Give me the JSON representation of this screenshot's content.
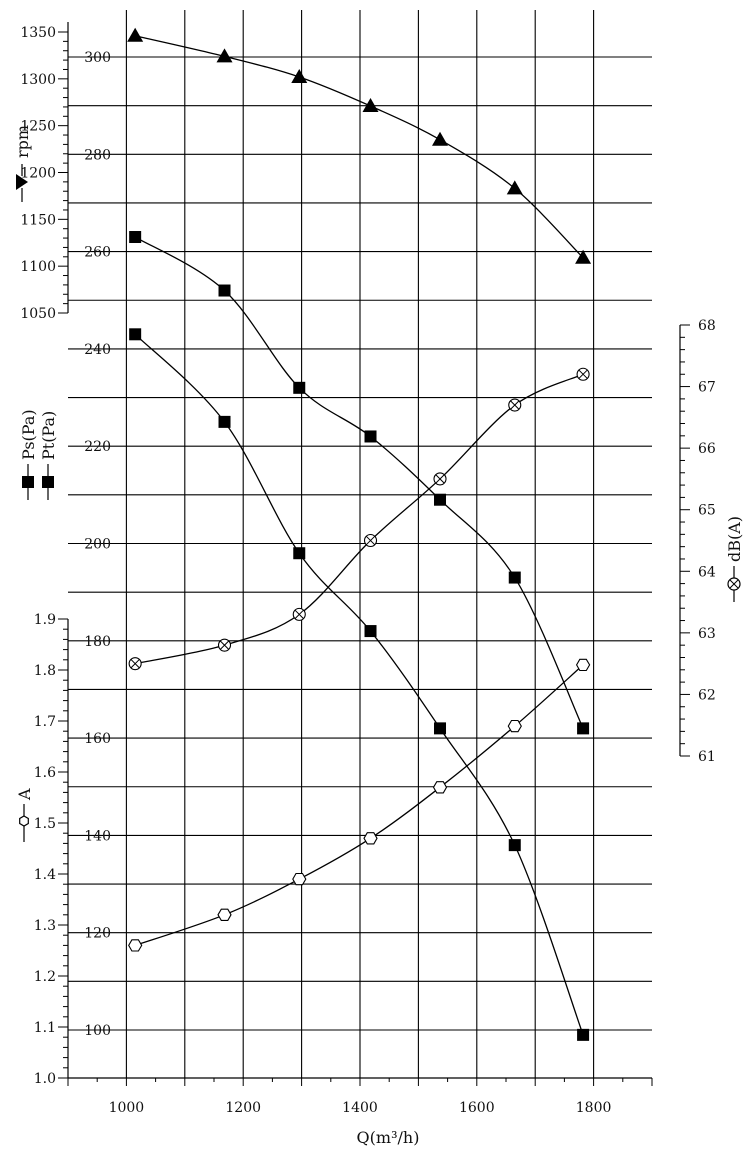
{
  "chart_data": {
    "type": "line",
    "x_axis": {
      "label": "Q(m³/h)",
      "range": [
        900,
        1900
      ],
      "ticks": [
        1000,
        1200,
        1400,
        1600,
        1800
      ]
    },
    "grid": true,
    "axes": {
      "rpm": {
        "label": "rpm",
        "range": [
          1050,
          1350
        ],
        "ticks": [
          1050,
          1100,
          1150,
          1200,
          1250,
          1300,
          1350
        ]
      },
      "pa": {
        "label_ps": "Ps(Pa)",
        "label_pt": "Pt(Pa)",
        "range": [
          100,
          300
        ],
        "ticks": [
          100,
          120,
          140,
          160,
          180,
          200,
          220,
          240,
          260,
          280,
          300
        ]
      },
      "amp": {
        "label": "A",
        "range": [
          1.0,
          1.9
        ],
        "ticks": [
          "1.0",
          "1.1",
          "1.2",
          "1.3",
          "1.4",
          "1.5",
          "1.6",
          "1.7",
          "1.8",
          "1.9"
        ]
      },
      "db": {
        "label": "dB(A)",
        "range": [
          61,
          68
        ],
        "ticks": [
          61,
          62,
          63,
          64,
          65,
          66,
          67,
          68
        ]
      }
    },
    "series": [
      {
        "name": "rpm",
        "axis": "rpm",
        "marker": "triangle",
        "x": [
          1015,
          1168,
          1296,
          1418,
          1537,
          1665,
          1782
        ],
        "y": [
          1346,
          1324,
          1302,
          1271,
          1235,
          1183,
          1109
        ]
      },
      {
        "name": "Pt(Pa)",
        "axis": "pa",
        "marker": "square",
        "x": [
          1015,
          1168,
          1296,
          1418,
          1537,
          1665,
          1782
        ],
        "y": [
          263,
          252,
          232,
          222,
          209,
          193,
          162
        ]
      },
      {
        "name": "Ps(Pa)",
        "axis": "pa",
        "marker": "square",
        "x": [
          1015,
          1168,
          1296,
          1418,
          1537,
          1665,
          1782
        ],
        "y": [
          243,
          225,
          198,
          182,
          162,
          138,
          99
        ]
      },
      {
        "name": "dB(A)",
        "axis": "db",
        "marker": "circle-x",
        "x": [
          1015,
          1168,
          1296,
          1418,
          1537,
          1665,
          1782
        ],
        "y": [
          62.5,
          62.8,
          63.3,
          64.5,
          65.5,
          66.7,
          67.2
        ]
      },
      {
        "name": "A",
        "axis": "amp",
        "marker": "hexagon",
        "x": [
          1015,
          1168,
          1296,
          1418,
          1537,
          1665,
          1782
        ],
        "y": [
          1.26,
          1.32,
          1.39,
          1.47,
          1.57,
          1.69,
          1.81
        ]
      }
    ]
  }
}
